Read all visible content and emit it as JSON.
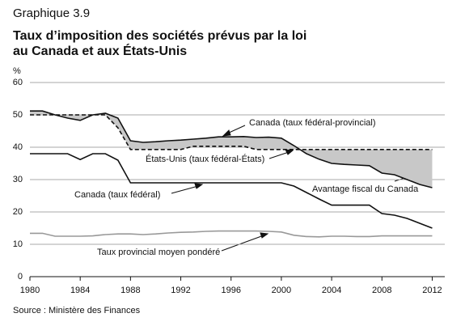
{
  "chart_data": {
    "type": "line",
    "title": "Graphique 3.9",
    "subtitle": [
      "Taux d’imposition des sociétés prévus par la loi",
      "au Canada et aux États-Unis"
    ],
    "y_label": "%",
    "source": "Source : Ministère des Finances",
    "annotation": "Avantage fiscal du Canada",
    "x": [
      1980,
      1981,
      1982,
      1983,
      1984,
      1985,
      1986,
      1987,
      1988,
      1989,
      1990,
      1991,
      1992,
      1993,
      1994,
      1995,
      1996,
      1997,
      1998,
      1999,
      2000,
      2001,
      2002,
      2003,
      2004,
      2005,
      2006,
      2007,
      2008,
      2009,
      2010,
      2011,
      2012
    ],
    "series": [
      {
        "name": "Canada (taux fédéral-provincial)",
        "color": "#111111",
        "values": [
          51.2,
          51.2,
          50,
          49,
          48.3,
          50,
          50.5,
          49,
          42,
          41.5,
          41.7,
          42,
          42.2,
          42.5,
          42.8,
          43.2,
          43.2,
          43.3,
          43,
          43.1,
          42.8,
          40.5,
          38,
          36.3,
          35,
          34.7,
          34.5,
          34.3,
          32,
          31.5,
          30,
          28.5,
          27.5
        ]
      },
      {
        "name": "États-Unis (taux fédéral-États)",
        "color": "#111111",
        "dashed": true,
        "values": [
          50,
          50,
          50,
          50,
          50,
          50,
          50,
          46,
          39.3,
          39.3,
          39.3,
          39.3,
          39.3,
          40.3,
          40.3,
          40.3,
          40.3,
          40.3,
          39.3,
          39.3,
          39.3,
          39.3,
          39.3,
          39.3,
          39.3,
          39.3,
          39.3,
          39.3,
          39.3,
          39.3,
          39.3,
          39.3,
          39.3
        ]
      },
      {
        "name": "Canada (taux fédéral)",
        "color": "#111111",
        "values": [
          38,
          38,
          38,
          38,
          36.2,
          38,
          38,
          36,
          29,
          29,
          29,
          29,
          29,
          29,
          29,
          29,
          29,
          29,
          29,
          29,
          29,
          28,
          26,
          24,
          22.1,
          22.1,
          22.1,
          22.1,
          19.5,
          19,
          18,
          16.5,
          15
        ]
      },
      {
        "name": "Taux provincial moyen pondéré",
        "color": "#999999",
        "values": [
          13.4,
          13.4,
          12.5,
          12.5,
          12.5,
          12.6,
          13,
          13.2,
          13.2,
          13,
          13.2,
          13.5,
          13.7,
          13.8,
          14,
          14.1,
          14.1,
          14.1,
          14.1,
          14,
          13.8,
          12.8,
          12.4,
          12.3,
          12.5,
          12.5,
          12.4,
          12.4,
          12.6,
          12.6,
          12.6,
          12.6,
          12.6
        ]
      }
    ],
    "fill_color": "#c8c8c8",
    "xlim": [
      1980,
      2013
    ],
    "xticks": [
      1980,
      1984,
      1988,
      1992,
      1996,
      2000,
      2004,
      2008,
      2012
    ],
    "ylim": [
      0,
      60
    ],
    "yticks": [
      0,
      10,
      20,
      30,
      40,
      50,
      60
    ],
    "grid": true
  }
}
